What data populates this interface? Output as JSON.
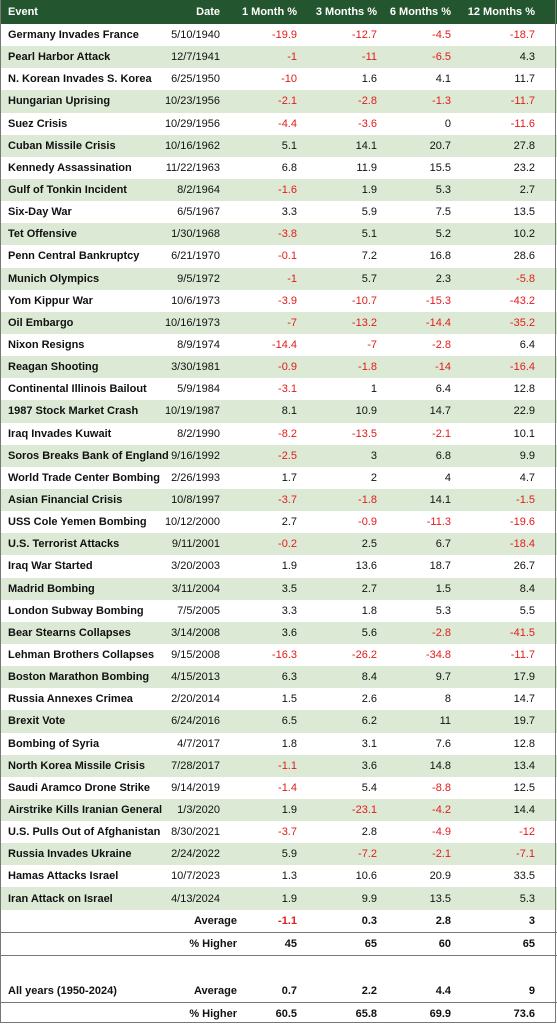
{
  "header": {
    "event": "Event",
    "date": "Date",
    "m1": "1 Month %",
    "m3": "3 Months %",
    "m6": "6 Months %",
    "m12": "12 Months %"
  },
  "rows": [
    {
      "event": "Germany Invades France",
      "date": "5/10/1940",
      "m1": "-19.9",
      "m3": "-12.7",
      "m6": "-4.5",
      "m12": "-18.7"
    },
    {
      "event": "Pearl Harbor Attack",
      "date": "12/7/1941",
      "m1": "-1",
      "m3": "-11",
      "m6": "-6.5",
      "m12": "4.3"
    },
    {
      "event": "N. Korean Invades S. Korea",
      "date": "6/25/1950",
      "m1": "-10",
      "m3": "1.6",
      "m6": "4.1",
      "m12": "11.7"
    },
    {
      "event": "Hungarian Uprising",
      "date": "10/23/1956",
      "m1": "-2.1",
      "m3": "-2.8",
      "m6": "-1.3",
      "m12": "-11.7"
    },
    {
      "event": "Suez Crisis",
      "date": "10/29/1956",
      "m1": "-4.4",
      "m3": "-3.6",
      "m6": "0",
      "m12": "-11.6"
    },
    {
      "event": "Cuban Missile Crisis",
      "date": "10/16/1962",
      "m1": "5.1",
      "m3": "14.1",
      "m6": "20.7",
      "m12": "27.8"
    },
    {
      "event": "Kennedy Assassination",
      "date": "11/22/1963",
      "m1": "6.8",
      "m3": "11.9",
      "m6": "15.5",
      "m12": "23.2"
    },
    {
      "event": "Gulf of Tonkin Incident",
      "date": "8/2/1964",
      "m1": "-1.6",
      "m3": "1.9",
      "m6": "5.3",
      "m12": "2.7"
    },
    {
      "event": "Six-Day War",
      "date": "6/5/1967",
      "m1": "3.3",
      "m3": "5.9",
      "m6": "7.5",
      "m12": "13.5"
    },
    {
      "event": "Tet Offensive",
      "date": "1/30/1968",
      "m1": "-3.8",
      "m3": "5.1",
      "m6": "5.2",
      "m12": "10.2"
    },
    {
      "event": "Penn Central Bankruptcy",
      "date": "6/21/1970",
      "m1": "-0.1",
      "m3": "7.2",
      "m6": "16.8",
      "m12": "28.6"
    },
    {
      "event": "Munich Olympics",
      "date": "9/5/1972",
      "m1": "-1",
      "m3": "5.7",
      "m6": "2.3",
      "m12": "-5.8"
    },
    {
      "event": "Yom Kippur War",
      "date": "10/6/1973",
      "m1": "-3.9",
      "m3": "-10.7",
      "m6": "-15.3",
      "m12": "-43.2"
    },
    {
      "event": "Oil Embargo",
      "date": "10/16/1973",
      "m1": "-7",
      "m3": "-13.2",
      "m6": "-14.4",
      "m12": "-35.2"
    },
    {
      "event": "Nixon Resigns",
      "date": "8/9/1974",
      "m1": "-14.4",
      "m3": "-7",
      "m6": "-2.8",
      "m12": "6.4"
    },
    {
      "event": "Reagan Shooting",
      "date": "3/30/1981",
      "m1": "-0.9",
      "m3": "-1.8",
      "m6": "-14",
      "m12": "-16.4"
    },
    {
      "event": "Continental Illinois Bailout",
      "date": "5/9/1984",
      "m1": "-3.1",
      "m3": "1",
      "m6": "6.4",
      "m12": "12.8"
    },
    {
      "event": "1987 Stock Market Crash",
      "date": "10/19/1987",
      "m1": "8.1",
      "m3": "10.9",
      "m6": "14.7",
      "m12": "22.9"
    },
    {
      "event": "Iraq Invades Kuwait",
      "date": "8/2/1990",
      "m1": "-8.2",
      "m3": "-13.5",
      "m6": "-2.1",
      "m12": "10.1"
    },
    {
      "event": "Soros Breaks Bank of England",
      "date": "9/16/1992",
      "m1": "-2.5",
      "m3": "3",
      "m6": "6.8",
      "m12": "9.9"
    },
    {
      "event": "World Trade Center Bombing",
      "date": "2/26/1993",
      "m1": "1.7",
      "m3": "2",
      "m6": "4",
      "m12": "4.7"
    },
    {
      "event": "Asian Financial Crisis",
      "date": "10/8/1997",
      "m1": "-3.7",
      "m3": "-1.8",
      "m6": "14.1",
      "m12": "-1.5"
    },
    {
      "event": "USS Cole Yemen Bombing",
      "date": "10/12/2000",
      "m1": "2.7",
      "m3": "-0.9",
      "m6": "-11.3",
      "m12": "-19.6"
    },
    {
      "event": "U.S. Terrorist Attacks",
      "date": "9/11/2001",
      "m1": "-0.2",
      "m3": "2.5",
      "m6": "6.7",
      "m12": "-18.4"
    },
    {
      "event": "Iraq War Started",
      "date": "3/20/2003",
      "m1": "1.9",
      "m3": "13.6",
      "m6": "18.7",
      "m12": "26.7"
    },
    {
      "event": "Madrid Bombing",
      "date": "3/11/2004",
      "m1": "3.5",
      "m3": "2.7",
      "m6": "1.5",
      "m12": "8.4"
    },
    {
      "event": "London Subway Bombing",
      "date": "7/5/2005",
      "m1": "3.3",
      "m3": "1.8",
      "m6": "5.3",
      "m12": "5.5"
    },
    {
      "event": "Bear Stearns Collapses",
      "date": "3/14/2008",
      "m1": "3.6",
      "m3": "5.6",
      "m6": "-2.8",
      "m12": "-41.5"
    },
    {
      "event": "Lehman Brothers Collapses",
      "date": "9/15/2008",
      "m1": "-16.3",
      "m3": "-26.2",
      "m6": "-34.8",
      "m12": "-11.7"
    },
    {
      "event": "Boston Marathon Bombing",
      "date": "4/15/2013",
      "m1": "6.3",
      "m3": "8.4",
      "m6": "9.7",
      "m12": "17.9"
    },
    {
      "event": "Russia Annexes Crimea",
      "date": "2/20/2014",
      "m1": "1.5",
      "m3": "2.6",
      "m6": "8",
      "m12": "14.7"
    },
    {
      "event": "Brexit Vote",
      "date": "6/24/2016",
      "m1": "6.5",
      "m3": "6.2",
      "m6": "11",
      "m12": "19.7"
    },
    {
      "event": "Bombing of Syria",
      "date": "4/7/2017",
      "m1": "1.8",
      "m3": "3.1",
      "m6": "7.6",
      "m12": "12.8"
    },
    {
      "event": "North Korea Missile Crisis",
      "date": "7/28/2017",
      "m1": "-1.1",
      "m3": "3.6",
      "m6": "14.8",
      "m12": "13.4"
    },
    {
      "event": "Saudi Aramco Drone Strike",
      "date": "9/14/2019",
      "m1": "-1.4",
      "m3": "5.4",
      "m6": "-8.8",
      "m12": "12.5"
    },
    {
      "event": "Airstrike Kills Iranian General",
      "date": "1/3/2020",
      "m1": "1.9",
      "m3": "-23.1",
      "m6": "-4.2",
      "m12": "14.4"
    },
    {
      "event": "U.S. Pulls Out of Afghanistan",
      "date": "8/30/2021",
      "m1": "-3.7",
      "m3": "2.8",
      "m6": "-4.9",
      "m12": "-12"
    },
    {
      "event": "Russia Invades Ukraine",
      "date": "2/24/2022",
      "m1": "5.9",
      "m3": "-7.2",
      "m6": "-2.1",
      "m12": "-7.1"
    },
    {
      "event": "Hamas Attacks Israel",
      "date": "10/7/2023",
      "m1": "1.3",
      "m3": "10.6",
      "m6": "20.9",
      "m12": "33.5"
    },
    {
      "event": "Iran Attack on Israel",
      "date": "4/13/2024",
      "m1": "1.9",
      "m3": "9.9",
      "m6": "13.5",
      "m12": "5.3"
    }
  ],
  "summary": [
    {
      "label": "Average",
      "m1": "-1.1",
      "m3": "0.3",
      "m6": "2.8",
      "m12": "3"
    },
    {
      "label": "% Higher",
      "m1": "45",
      "m3": "65",
      "m6": "60",
      "m12": "65"
    }
  ],
  "all_years": {
    "title": "All years (1950-2024)",
    "rows": [
      {
        "label": "Average",
        "m1": "0.7",
        "m3": "2.2",
        "m6": "4.4",
        "m12": "9"
      },
      {
        "label": "% Higher",
        "m1": "60.5",
        "m3": "65.8",
        "m6": "69.9",
        "m12": "73.6"
      }
    ]
  },
  "colors": {
    "header_bg": "#23552e",
    "alt_row_bg": "#dcead5",
    "negative": "#e31b1b"
  }
}
